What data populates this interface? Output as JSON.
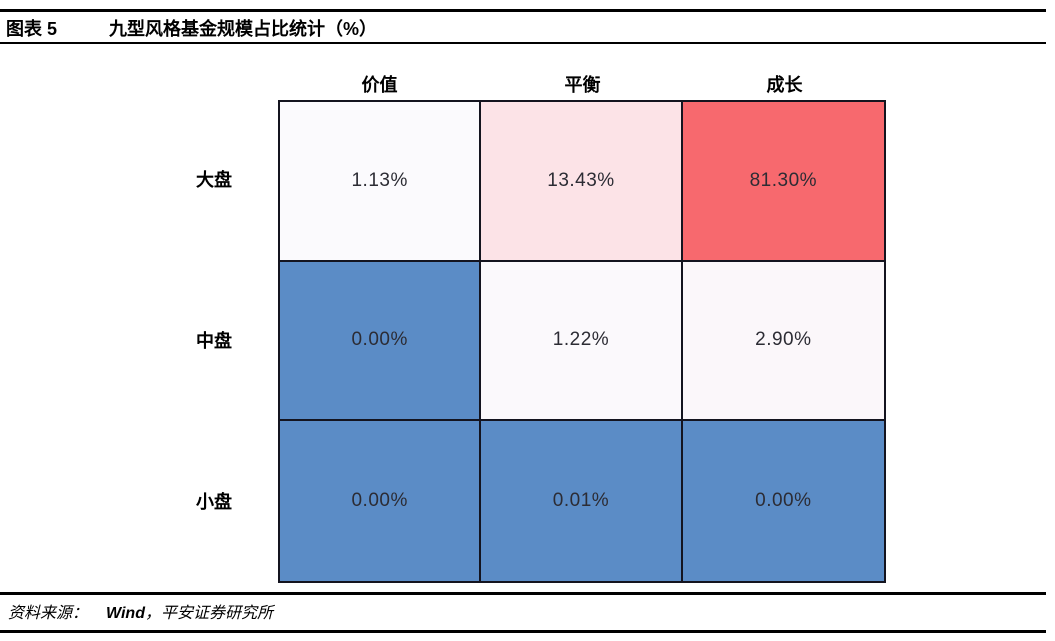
{
  "header": {
    "figure_label": "图表 5",
    "title": "九型风格基金规模占比统计（%）"
  },
  "chart_data": {
    "type": "heatmap",
    "title": "九型风格基金规模占比统计（%）",
    "unit": "%",
    "columns": [
      "价值",
      "平衡",
      "成长"
    ],
    "rows": [
      "大盘",
      "中盘",
      "小盘"
    ],
    "values": [
      [
        1.13,
        13.43,
        81.3
      ],
      [
        0.0,
        1.22,
        2.9
      ],
      [
        0.0,
        0.01,
        0.0
      ]
    ],
    "value_labels": [
      [
        "1.13%",
        "13.43%",
        "81.30%"
      ],
      [
        "0.00%",
        "1.22%",
        "2.90%"
      ],
      [
        "0.00%",
        "0.01%",
        "0.00%"
      ]
    ],
    "cell_colors": [
      [
        "#fbfafd",
        "#fce3e7",
        "#f7696e"
      ],
      [
        "#5b8cc6",
        "#fbf9fc",
        "#fbf7fa"
      ],
      [
        "#5b8cc6",
        "#5b8cc6",
        "#5b8cc6"
      ]
    ],
    "colorscale": {
      "low_color": "#5b8cc6",
      "mid_color": "#fbfafd",
      "high_color": "#f7696e",
      "low_value": 0,
      "high_value": 81.3
    },
    "grid_border_color": "#14141f",
    "legend": "none",
    "grid": "on"
  },
  "footer": {
    "source_prefix": "资料来源：",
    "source_name": "Wind",
    "source_rest": "，平安证券研究所"
  }
}
